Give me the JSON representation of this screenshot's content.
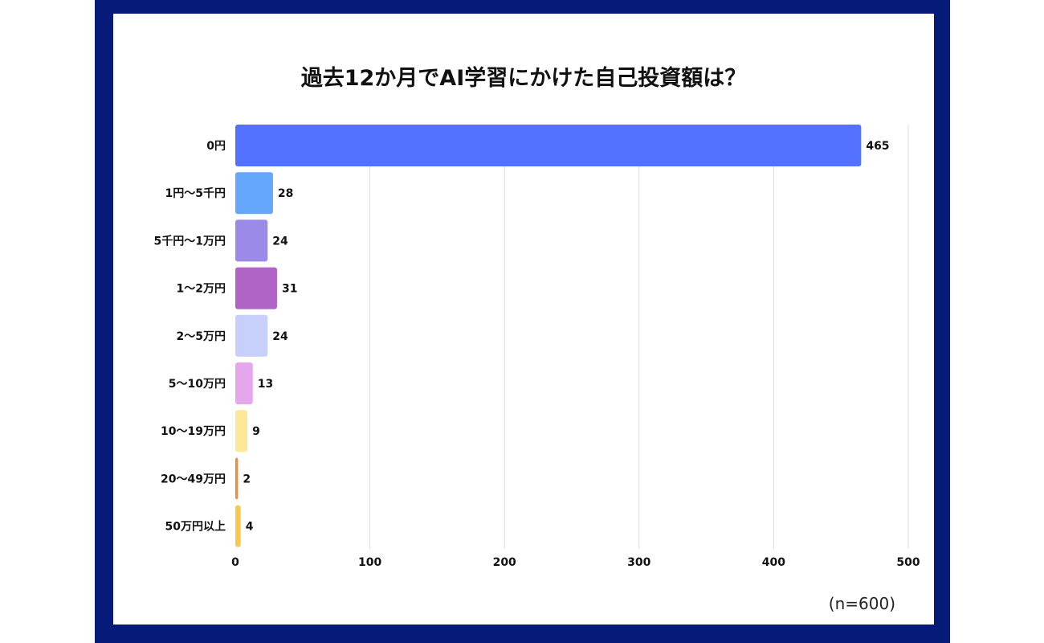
{
  "chart_data": {
    "type": "bar",
    "orientation": "horizontal",
    "title": "過去12か月でAI学習にかけた自己投資額は？",
    "note": "(n=600)",
    "categories": [
      "0円",
      "1円〜5千円",
      "5千円〜1万円",
      "1〜2万円",
      "2〜5万円",
      "5〜10万円",
      "10〜19万円",
      "20〜49万円",
      "50万円以上"
    ],
    "values": [
      465,
      28,
      24,
      31,
      24,
      13,
      9,
      2,
      4
    ],
    "colors": [
      "#5271ff",
      "#65a7fc",
      "#9b8ae8",
      "#b064c6",
      "#c7d0fb",
      "#e4a7ec",
      "#fde999",
      "#f3893b",
      "#f9c84f"
    ],
    "xlim": [
      0,
      500
    ],
    "xticks": [
      0,
      100,
      200,
      300,
      400,
      500
    ],
    "grid": true,
    "legend": "none"
  }
}
